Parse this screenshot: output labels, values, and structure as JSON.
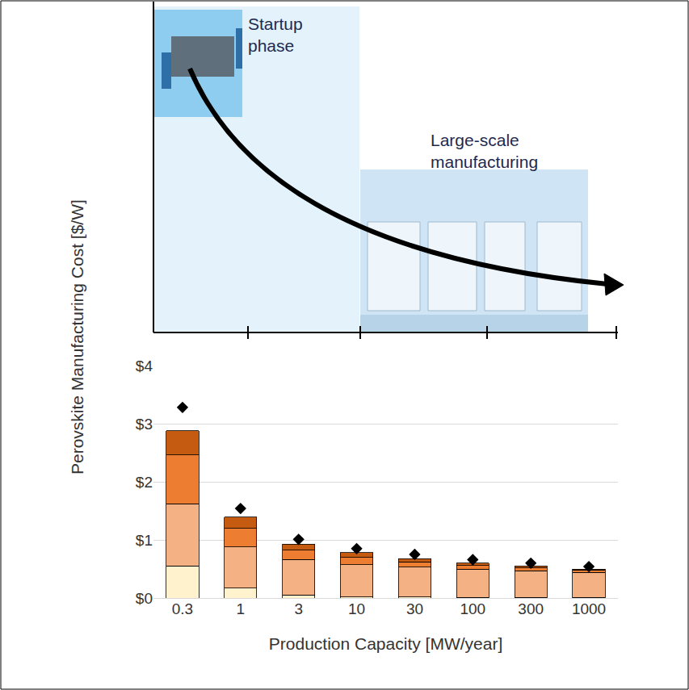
{
  "chart_data": {
    "type": "bar",
    "stacked": true,
    "y_label": "Perovskite Manufacturing Cost [$/W]",
    "x_label": "Production Capacity [MW/year]",
    "annotations": [
      "Startup phase",
      "Large-scale manufacturing"
    ],
    "categories": [
      "0.3",
      "1",
      "3",
      "10",
      "30",
      "100",
      "300",
      "1000"
    ],
    "ylim": [
      0,
      4
    ],
    "yticks": [
      {
        "value": 0,
        "label": "$0"
      },
      {
        "value": 1,
        "label": "$1"
      },
      {
        "value": 2,
        "label": "$2"
      },
      {
        "value": 3,
        "label": "$3"
      },
      {
        "value": 4,
        "label": "$4"
      }
    ],
    "grid": true,
    "series": [
      {
        "type": "bar",
        "color": "#fff2cc",
        "values": [
          0.55,
          0.17,
          0.05,
          0.02,
          0.02,
          0.01,
          0.01,
          0.01
        ]
      },
      {
        "type": "bar",
        "color": "#f4b183",
        "values": [
          1.07,
          0.71,
          0.61,
          0.55,
          0.51,
          0.49,
          0.46,
          0.43
        ]
      },
      {
        "type": "bar",
        "color": "#ed7d31",
        "values": [
          0.84,
          0.32,
          0.16,
          0.13,
          0.09,
          0.06,
          0.05,
          0.04
        ]
      },
      {
        "type": "bar",
        "color": "#c55a11",
        "values": [
          0.42,
          0.19,
          0.11,
          0.08,
          0.06,
          0.04,
          0.03,
          0.02
        ]
      },
      {
        "type": "scatter",
        "marker": "diamond",
        "color": "#000000",
        "values": [
          3.28,
          1.54,
          1.01,
          0.85,
          0.75,
          0.66,
          0.6,
          0.54
        ]
      }
    ]
  }
}
